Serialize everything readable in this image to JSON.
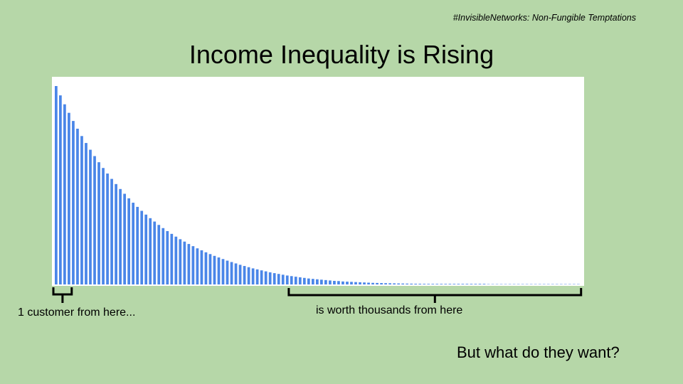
{
  "header": {
    "hashtag": "#InvisibleNetworks: Non-Fungible Temptations",
    "title": "Income Inequality is Rising"
  },
  "annotations": {
    "left_label": "1 customer from here...",
    "right_label": "is worth thousands from here",
    "question": "But what do they want?"
  },
  "colors": {
    "background": "#b6d7a8",
    "bar": "#4a86e8",
    "plot_bg": "#ffffff",
    "bracket": "#000000"
  },
  "chart_data": {
    "type": "bar",
    "title": "Income Inequality is Rising",
    "xlabel": "",
    "ylabel": "",
    "ylim": [
      0,
      100
    ],
    "grid": false,
    "legend": "none",
    "series": [
      {
        "values": [
          100,
          95.3,
          90.8,
          86.5,
          82.4,
          78.5,
          74.8,
          71.3,
          67.9,
          64.7,
          61.6,
          58.7,
          55.9,
          53.2,
          50.6,
          48.1,
          45.7,
          43.4,
          41.2,
          39.1,
          37.1,
          35.2,
          33.4,
          31.7,
          30.0,
          28.4,
          26.9,
          25.5,
          24.1,
          22.8,
          21.6,
          20.4,
          19.3,
          18.2,
          17.2,
          16.2,
          15.3,
          14.4,
          13.6,
          12.8,
          12.0,
          11.3,
          10.6,
          9.9,
          9.3,
          8.7,
          8.1,
          7.6,
          7.1,
          6.6,
          6.1,
          5.7,
          5.3,
          4.9,
          4.5,
          4.2,
          3.9,
          3.6,
          3.3,
          3.0,
          2.8,
          2.6,
          2.4,
          2.2,
          2.0,
          1.8,
          1.7,
          1.5,
          1.4,
          1.3,
          1.2,
          1.1,
          1.0,
          0.9,
          0.8,
          0.75,
          0.7,
          0.65,
          0.6,
          0.55,
          0.5,
          0.46,
          0.42,
          0.39,
          0.36,
          0.33,
          0.3,
          0.28,
          0.26,
          0.24,
          0.22,
          0.2,
          0.19,
          0.18,
          0.17,
          0.16,
          0.15,
          0.14,
          0.13,
          0.12,
          0.11,
          0.1,
          0.1,
          0.1,
          0.1,
          0.1,
          0.1,
          0.1,
          0.1,
          0.1,
          0.1,
          0.1,
          0.1,
          0.1,
          0.1,
          0.1,
          0.1,
          0.1,
          0.1,
          0.1,
          0.1,
          0.1,
          0.1
        ]
      }
    ],
    "brackets": [
      {
        "from_index": 0,
        "to_index": 3
      },
      {
        "from_index": 55,
        "to_index": 122
      }
    ]
  }
}
